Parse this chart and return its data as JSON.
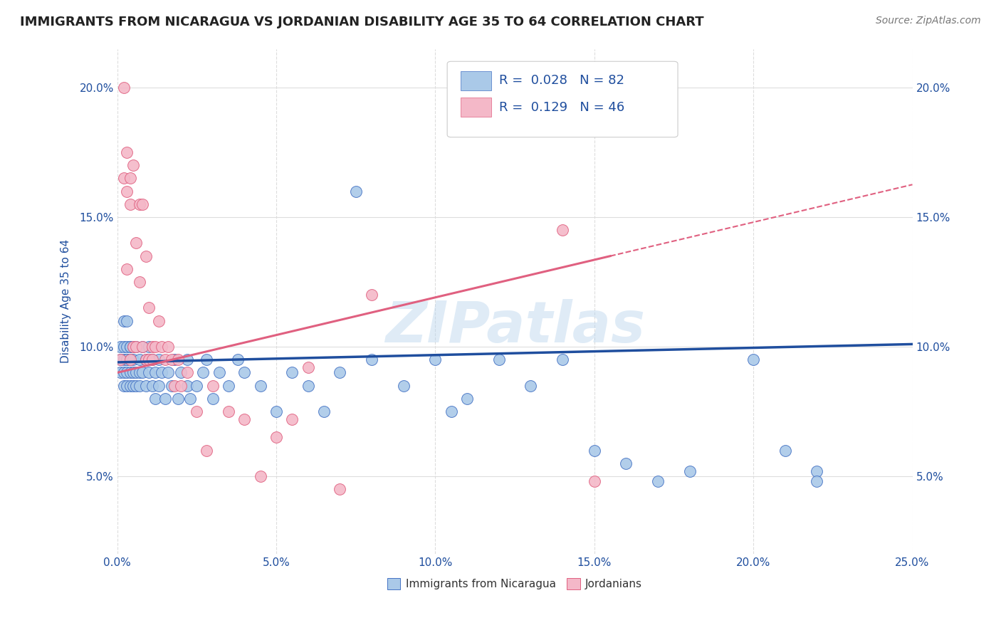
{
  "title": "IMMIGRANTS FROM NICARAGUA VS JORDANIAN DISABILITY AGE 35 TO 64 CORRELATION CHART",
  "source_text": "Source: ZipAtlas.com",
  "ylabel": "Disability Age 35 to 64",
  "xlim": [
    0.0,
    0.25
  ],
  "ylim": [
    0.02,
    0.215
  ],
  "xticks": [
    0.0,
    0.05,
    0.1,
    0.15,
    0.2,
    0.25
  ],
  "yticks": [
    0.05,
    0.1,
    0.15,
    0.2
  ],
  "ytick_labels": [
    "5.0%",
    "10.0%",
    "15.0%",
    "20.0%"
  ],
  "xtick_labels": [
    "0.0%",
    "5.0%",
    "10.0%",
    "15.0%",
    "20.0%",
    "25.0%"
  ],
  "grid_color": "#dddddd",
  "background_color": "#ffffff",
  "watermark": "ZIPatlas",
  "blue_reg_line": [
    0.0,
    0.25,
    0.094,
    0.101
  ],
  "pink_reg_line": [
    0.0,
    0.155,
    0.09,
    0.135
  ],
  "series": [
    {
      "name": "Immigrants from Nicaragua",
      "color": "#aac9e8",
      "edge_color": "#4472c4",
      "line_color": "#1f4e9e",
      "line_style": "solid",
      "x": [
        0.001,
        0.001,
        0.001,
        0.002,
        0.002,
        0.002,
        0.002,
        0.002,
        0.003,
        0.003,
        0.003,
        0.003,
        0.003,
        0.003,
        0.004,
        0.004,
        0.004,
        0.004,
        0.004,
        0.005,
        0.005,
        0.005,
        0.005,
        0.006,
        0.006,
        0.006,
        0.007,
        0.007,
        0.007,
        0.008,
        0.008,
        0.009,
        0.009,
        0.01,
        0.01,
        0.011,
        0.011,
        0.012,
        0.012,
        0.013,
        0.013,
        0.014,
        0.015,
        0.016,
        0.017,
        0.018,
        0.019,
        0.02,
        0.022,
        0.022,
        0.023,
        0.025,
        0.027,
        0.028,
        0.03,
        0.032,
        0.035,
        0.038,
        0.04,
        0.045,
        0.05,
        0.055,
        0.06,
        0.065,
        0.07,
        0.075,
        0.08,
        0.09,
        0.1,
        0.105,
        0.11,
        0.12,
        0.13,
        0.14,
        0.15,
        0.16,
        0.17,
        0.18,
        0.2,
        0.21,
        0.22,
        0.22
      ],
      "y": [
        0.1,
        0.095,
        0.09,
        0.11,
        0.095,
        0.09,
        0.085,
        0.1,
        0.095,
        0.1,
        0.09,
        0.085,
        0.11,
        0.095,
        0.1,
        0.09,
        0.085,
        0.095,
        0.1,
        0.09,
        0.085,
        0.095,
        0.1,
        0.09,
        0.085,
        0.1,
        0.095,
        0.09,
        0.085,
        0.09,
        0.1,
        0.085,
        0.095,
        0.09,
        0.1,
        0.085,
        0.095,
        0.08,
        0.09,
        0.085,
        0.095,
        0.09,
        0.08,
        0.09,
        0.085,
        0.095,
        0.08,
        0.09,
        0.085,
        0.095,
        0.08,
        0.085,
        0.09,
        0.095,
        0.08,
        0.09,
        0.085,
        0.095,
        0.09,
        0.085,
        0.075,
        0.09,
        0.085,
        0.075,
        0.09,
        0.16,
        0.095,
        0.085,
        0.095,
        0.075,
        0.08,
        0.095,
        0.085,
        0.095,
        0.06,
        0.055,
        0.048,
        0.052,
        0.095,
        0.06,
        0.052,
        0.048
      ]
    },
    {
      "name": "Jordanians",
      "color": "#f4b8c8",
      "edge_color": "#e06080",
      "line_color": "#e06080",
      "line_style": "dashed",
      "x": [
        0.001,
        0.002,
        0.002,
        0.003,
        0.003,
        0.003,
        0.004,
        0.004,
        0.004,
        0.005,
        0.005,
        0.006,
        0.006,
        0.007,
        0.007,
        0.008,
        0.008,
        0.009,
        0.009,
        0.01,
        0.01,
        0.011,
        0.011,
        0.012,
        0.013,
        0.014,
        0.015,
        0.016,
        0.017,
        0.018,
        0.019,
        0.02,
        0.022,
        0.025,
        0.028,
        0.03,
        0.035,
        0.04,
        0.045,
        0.05,
        0.055,
        0.06,
        0.07,
        0.08,
        0.14,
        0.15
      ],
      "y": [
        0.095,
        0.2,
        0.165,
        0.175,
        0.16,
        0.13,
        0.165,
        0.155,
        0.095,
        0.1,
        0.17,
        0.14,
        0.1,
        0.155,
        0.125,
        0.155,
        0.1,
        0.135,
        0.095,
        0.095,
        0.115,
        0.095,
        0.1,
        0.1,
        0.11,
        0.1,
        0.095,
        0.1,
        0.095,
        0.085,
        0.095,
        0.085,
        0.09,
        0.075,
        0.06,
        0.085,
        0.075,
        0.072,
        0.05,
        0.065,
        0.072,
        0.092,
        0.045,
        0.12,
        0.145,
        0.048
      ]
    }
  ],
  "legend": {
    "R1": "0.028",
    "N1": "82",
    "R2": "0.129",
    "N2": "46"
  },
  "title_color": "#222222",
  "axis_color": "#1f4e9e",
  "tick_color": "#1f4e9e"
}
